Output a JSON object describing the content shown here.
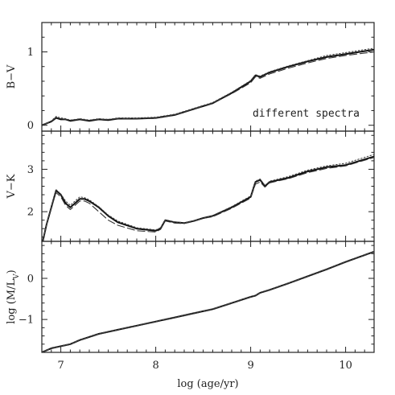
{
  "chart_data": {
    "type": "line",
    "xlabel": "log (age/yr)",
    "xlim": [
      6.8,
      10.3
    ],
    "x_ticks": [
      "7",
      "8",
      "9",
      "10"
    ],
    "x_tick_values": [
      7,
      8,
      9,
      10
    ],
    "panels": [
      {
        "id": "bv",
        "ylabel": "B−V",
        "ylim": [
          -0.08,
          1.4
        ],
        "y_ticks": [
          "0",
          "1"
        ],
        "y_tick_values": [
          0,
          1
        ],
        "annotation": "different spectra",
        "series": [
          {
            "style": "solid",
            "x": [
              6.8,
              6.9,
              6.95,
              7.0,
              7.05,
              7.1,
              7.2,
              7.3,
              7.4,
              7.5,
              7.6,
              7.8,
              8.0,
              8.2,
              8.4,
              8.6,
              8.8,
              9.0,
              9.05,
              9.1,
              9.2,
              9.4,
              9.6,
              9.8,
              10.0,
              10.3
            ],
            "y": [
              0.0,
              0.05,
              0.1,
              0.08,
              0.08,
              0.06,
              0.08,
              0.06,
              0.08,
              0.07,
              0.09,
              0.09,
              0.1,
              0.14,
              0.22,
              0.3,
              0.44,
              0.6,
              0.68,
              0.66,
              0.72,
              0.8,
              0.87,
              0.93,
              0.97,
              1.03
            ]
          },
          {
            "style": "dashed",
            "x": [
              6.8,
              6.9,
              6.95,
              7.0,
              7.05,
              7.1,
              7.2,
              7.3,
              7.4,
              7.5,
              7.6,
              7.8,
              8.0,
              8.2,
              8.4,
              8.6,
              8.8,
              9.0,
              9.05,
              9.1,
              9.2,
              9.4,
              9.6,
              9.8,
              10.0,
              10.3
            ],
            "y": [
              0.0,
              0.05,
              0.11,
              0.09,
              0.08,
              0.07,
              0.08,
              0.07,
              0.08,
              0.08,
              0.09,
              0.09,
              0.1,
              0.14,
              0.22,
              0.3,
              0.43,
              0.58,
              0.66,
              0.64,
              0.7,
              0.78,
              0.85,
              0.91,
              0.95,
              1.0
            ]
          },
          {
            "style": "dotted",
            "x": [
              6.8,
              6.9,
              6.95,
              7.0,
              7.05,
              7.1,
              7.2,
              7.3,
              7.4,
              7.5,
              7.6,
              7.8,
              8.0,
              8.2,
              8.4,
              8.6,
              8.8,
              9.0,
              9.05,
              9.1,
              9.2,
              9.4,
              9.6,
              9.8,
              10.0,
              10.3
            ],
            "y": [
              0.0,
              0.06,
              0.12,
              0.1,
              0.09,
              0.07,
              0.09,
              0.07,
              0.09,
              0.08,
              0.1,
              0.1,
              0.11,
              0.15,
              0.23,
              0.31,
              0.45,
              0.61,
              0.69,
              0.67,
              0.73,
              0.81,
              0.88,
              0.95,
              0.99,
              1.05
            ]
          }
        ]
      },
      {
        "id": "vk",
        "ylabel": "V−K",
        "ylim": [
          1.3,
          3.9
        ],
        "y_ticks": [
          "2",
          "3"
        ],
        "y_tick_values": [
          2,
          3
        ],
        "annotation": "",
        "series": [
          {
            "style": "solid",
            "x": [
              6.8,
              6.85,
              6.9,
              6.95,
              7.0,
              7.05,
              7.1,
              7.15,
              7.2,
              7.25,
              7.3,
              7.4,
              7.5,
              7.6,
              7.8,
              8.0,
              8.05,
              8.1,
              8.2,
              8.3,
              8.4,
              8.5,
              8.6,
              8.8,
              9.0,
              9.05,
              9.1,
              9.15,
              9.2,
              9.4,
              9.6,
              9.8,
              10.0,
              10.3
            ],
            "y": [
              1.2,
              1.7,
              2.1,
              2.5,
              2.4,
              2.2,
              2.1,
              2.2,
              2.3,
              2.3,
              2.25,
              2.1,
              1.9,
              1.75,
              1.6,
              1.55,
              1.6,
              1.8,
              1.75,
              1.73,
              1.78,
              1.85,
              1.9,
              2.1,
              2.35,
              2.7,
              2.75,
              2.6,
              2.7,
              2.8,
              2.95,
              3.05,
              3.1,
              3.3
            ]
          },
          {
            "style": "dashed",
            "x": [
              6.8,
              6.85,
              6.9,
              6.95,
              7.0,
              7.05,
              7.1,
              7.15,
              7.2,
              7.25,
              7.3,
              7.4,
              7.5,
              7.6,
              7.8,
              8.0,
              8.05,
              8.1,
              8.2,
              8.3,
              8.4,
              8.5,
              8.6,
              8.8,
              9.0,
              9.05,
              9.1,
              9.15,
              9.2,
              9.4,
              9.6,
              9.8,
              10.0,
              10.3
            ],
            "y": [
              1.2,
              1.7,
              2.1,
              2.45,
              2.35,
              2.15,
              2.05,
              2.15,
              2.25,
              2.25,
              2.2,
              2.0,
              1.8,
              1.68,
              1.55,
              1.52,
              1.58,
              1.78,
              1.73,
              1.72,
              1.77,
              1.84,
              1.88,
              2.08,
              2.32,
              2.65,
              2.7,
              2.58,
              2.68,
              2.78,
              2.92,
              3.02,
              3.08,
              3.28
            ]
          },
          {
            "style": "dotted",
            "x": [
              6.8,
              6.85,
              6.9,
              6.95,
              7.0,
              7.05,
              7.1,
              7.15,
              7.2,
              7.25,
              7.3,
              7.4,
              7.5,
              7.6,
              7.8,
              8.0,
              8.05,
              8.1,
              8.2,
              8.3,
              8.4,
              8.5,
              8.6,
              8.8,
              9.0,
              9.05,
              9.1,
              9.15,
              9.2,
              9.4,
              9.6,
              9.8,
              10.0,
              10.3
            ],
            "y": [
              1.2,
              1.7,
              2.12,
              2.52,
              2.42,
              2.25,
              2.15,
              2.25,
              2.35,
              2.33,
              2.28,
              2.12,
              1.92,
              1.78,
              1.62,
              1.57,
              1.62,
              1.81,
              1.76,
              1.74,
              1.79,
              1.86,
              1.91,
              2.12,
              2.37,
              2.72,
              2.77,
              2.62,
              2.72,
              2.83,
              2.98,
              3.08,
              3.14,
              3.35
            ]
          }
        ]
      },
      {
        "id": "ml",
        "ylabel": "log (M/L_V)",
        "ylim": [
          -1.8,
          0.9
        ],
        "y_ticks": [
          "0",
          "−1"
        ],
        "y_tick_values": [
          0,
          -1
        ],
        "annotation": "",
        "series": [
          {
            "style": "solid",
            "x": [
              6.8,
              6.9,
              7.0,
              7.1,
              7.2,
              7.4,
              7.6,
              7.8,
              8.0,
              8.2,
              8.4,
              8.6,
              8.8,
              9.0,
              9.05,
              9.1,
              9.2,
              9.4,
              9.6,
              9.8,
              10.0,
              10.3
            ],
            "y": [
              -1.8,
              -1.7,
              -1.65,
              -1.6,
              -1.5,
              -1.35,
              -1.25,
              -1.15,
              -1.05,
              -0.95,
              -0.85,
              -0.75,
              -0.6,
              -0.45,
              -0.42,
              -0.35,
              -0.28,
              -0.12,
              0.05,
              0.22,
              0.4,
              0.65
            ]
          },
          {
            "style": "dashed",
            "x": [
              6.8,
              6.9,
              7.0,
              7.1,
              7.2,
              7.4,
              7.6,
              7.8,
              8.0,
              8.2,
              8.4,
              8.6,
              8.8,
              9.0,
              9.05,
              9.1,
              9.2,
              9.4,
              9.6,
              9.8,
              10.0,
              10.3
            ],
            "y": [
              -1.8,
              -1.71,
              -1.66,
              -1.61,
              -1.51,
              -1.36,
              -1.26,
              -1.16,
              -1.06,
              -0.96,
              -0.86,
              -0.76,
              -0.61,
              -0.46,
              -0.43,
              -0.36,
              -0.29,
              -0.13,
              0.04,
              0.21,
              0.39,
              0.64
            ]
          },
          {
            "style": "dotted",
            "x": [
              6.8,
              6.9,
              7.0,
              7.1,
              7.2,
              7.4,
              7.6,
              7.8,
              8.0,
              8.2,
              8.4,
              8.6,
              8.8,
              9.0,
              9.05,
              9.1,
              9.2,
              9.4,
              9.6,
              9.8,
              10.0,
              10.3
            ],
            "y": [
              -1.8,
              -1.69,
              -1.64,
              -1.59,
              -1.49,
              -1.34,
              -1.24,
              -1.14,
              -1.04,
              -0.94,
              -0.84,
              -0.74,
              -0.59,
              -0.44,
              -0.41,
              -0.34,
              -0.27,
              -0.11,
              0.06,
              0.23,
              0.41,
              0.66
            ]
          }
        ]
      }
    ]
  }
}
